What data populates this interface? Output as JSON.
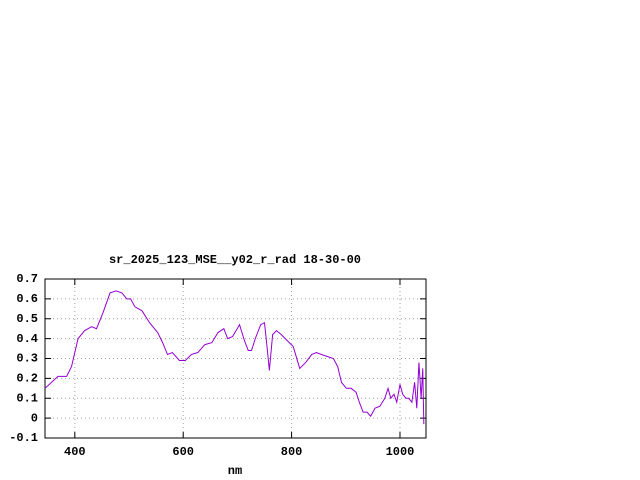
{
  "chart_data": {
    "type": "line",
    "title": "sr_2025_123_MSE__y02_r_rad 18-30-00",
    "x_label": "nm",
    "xlim": [
      345,
      1048
    ],
    "ylim": [
      -0.1,
      0.7
    ],
    "xticks": [
      400,
      600,
      800,
      1000
    ],
    "yticks": [
      -0.1,
      0,
      0.1,
      0.2,
      0.3,
      0.4,
      0.5,
      0.6,
      0.7
    ],
    "grid": true,
    "series": [
      {
        "color": "#9400d3",
        "x": [
          345,
          369,
          385,
          394,
          406,
          418,
          431,
          440,
          452,
          465,
          476,
          487,
          496,
          503,
          511,
          524,
          538,
          553,
          562,
          571,
          580,
          593,
          604,
          615,
          627,
          640,
          653,
          664,
          675,
          682,
          691,
          704,
          713,
          720,
          726,
          733,
          743,
          750,
          755,
          759,
          765,
          772,
          781,
          792,
          803,
          815,
          826,
          837,
          846,
          855,
          866,
          877,
          885,
          892,
          901,
          910,
          919,
          925,
          932,
          939,
          946,
          954,
          963,
          972,
          978,
          983,
          989,
          994,
          1000,
          1005,
          1011,
          1016,
          1022,
          1027,
          1031,
          1035,
          1039,
          1042,
          1044
        ],
        "values": [
          0.15,
          0.21,
          0.21,
          0.26,
          0.4,
          0.44,
          0.46,
          0.45,
          0.53,
          0.63,
          0.64,
          0.63,
          0.6,
          0.6,
          0.56,
          0.54,
          0.48,
          0.43,
          0.38,
          0.32,
          0.33,
          0.29,
          0.29,
          0.32,
          0.33,
          0.37,
          0.38,
          0.43,
          0.45,
          0.4,
          0.41,
          0.47,
          0.39,
          0.34,
          0.34,
          0.4,
          0.47,
          0.48,
          0.35,
          0.24,
          0.42,
          0.44,
          0.42,
          0.39,
          0.36,
          0.25,
          0.28,
          0.32,
          0.33,
          0.32,
          0.31,
          0.3,
          0.26,
          0.18,
          0.15,
          0.15,
          0.13,
          0.08,
          0.03,
          0.03,
          0.01,
          0.05,
          0.06,
          0.1,
          0.15,
          0.1,
          0.12,
          0.08,
          0.17,
          0.12,
          0.1,
          0.1,
          0.08,
          0.18,
          0.05,
          0.28,
          0.1,
          0.25,
          -0.03
        ]
      }
    ]
  }
}
